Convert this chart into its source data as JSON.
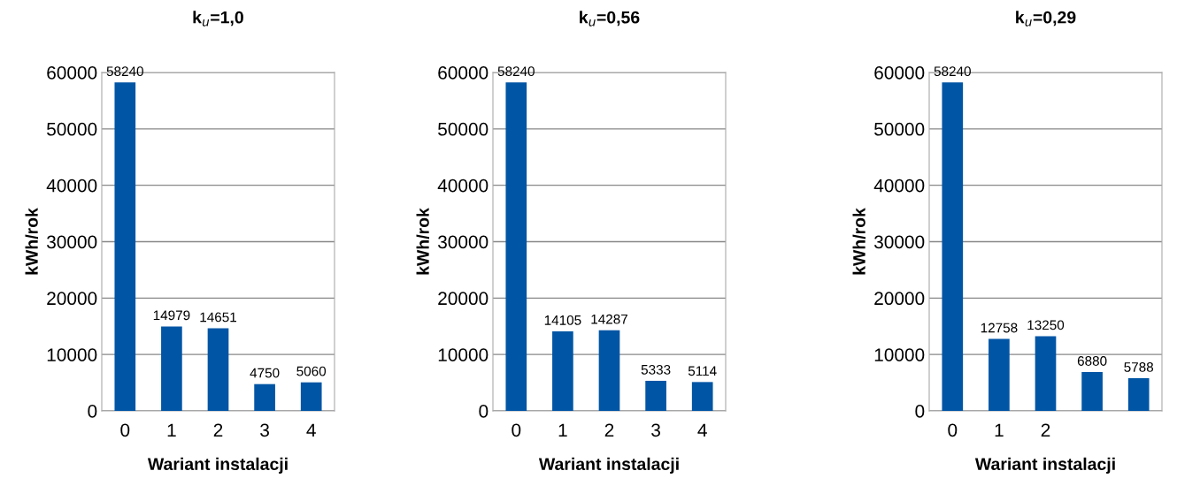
{
  "chart_data": [
    {
      "type": "bar",
      "title": "k$_{u}$=1,0",
      "xlabel": "Wariant instalacji",
      "ylabel": "kWh/rok",
      "categories": [
        "0",
        "1",
        "2",
        "3",
        "4"
      ],
      "values": [
        58240,
        14979,
        14651,
        4750,
        5060
      ],
      "color": "#0055a5",
      "ylim": [
        0,
        60000
      ],
      "yticks": [
        0,
        10000,
        20000,
        30000,
        40000,
        50000,
        60000
      ],
      "grid": "y",
      "data_labels": true
    },
    {
      "type": "bar",
      "title": "k$_{u}$=0,56",
      "xlabel": "Wariant instalacji",
      "ylabel": "kWh/rok",
      "categories": [
        "0",
        "1",
        "2",
        "3",
        "4"
      ],
      "values": [
        58240,
        14105,
        14287,
        5333,
        5114
      ],
      "color": "#0055a5",
      "ylim": [
        0,
        60000
      ],
      "yticks": [
        0,
        10000,
        20000,
        30000,
        40000,
        50000,
        60000
      ],
      "grid": "y",
      "data_labels": true
    },
    {
      "type": "bar",
      "title": "k$_{u}$=0,29",
      "xlabel": "Wariant instalacji",
      "ylabel": "kWh/rok",
      "categories": [
        "0",
        "1",
        "2",
        null,
        null
      ],
      "values": [
        58240,
        12758,
        13250,
        6880,
        5788
      ],
      "color": "#0055a5",
      "ylim": [
        0,
        60000
      ],
      "yticks": [
        0,
        10000,
        20000,
        30000,
        40000,
        50000,
        60000
      ],
      "grid": "y",
      "data_labels": true
    }
  ]
}
